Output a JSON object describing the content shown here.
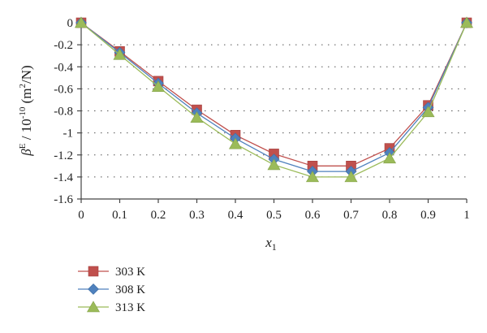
{
  "chart_data": {
    "type": "line",
    "x": [
      0,
      0.1,
      0.2,
      0.3,
      0.4,
      0.5,
      0.6,
      0.7,
      0.8,
      0.9,
      1
    ],
    "x_tick_labels": [
      "0",
      "0.1",
      "0.2",
      "0.3",
      "0.4",
      "0.5",
      "0.6",
      "0.7",
      "0.8",
      "0.9",
      "1"
    ],
    "y_tick_values": [
      0,
      -0.2,
      -0.4,
      -0.6,
      -0.8,
      -1,
      -1.2,
      -1.4,
      -1.6
    ],
    "y_tick_labels": [
      "0",
      "-0.2",
      "-0.4",
      "-0.6",
      "-0.8",
      "-1",
      "-1.2",
      "-1.4",
      "-1.6"
    ],
    "ylim": [
      -1.6,
      0
    ],
    "xlabel": "x",
    "xlabel_sub": "1",
    "ylabel": {
      "beta": "β",
      "beta_sup": "E",
      "unit_pre": " / 10",
      "exp": "-10",
      "unit_mid": " (m",
      "unit_sup": "2",
      "unit_post": "/N)"
    },
    "grid": "horizontal dotted",
    "legend_position": "bottom-left",
    "series": [
      {
        "name": "303 K",
        "marker": "square",
        "color": "#c0504d",
        "values": [
          0,
          -0.26,
          -0.53,
          -0.79,
          -1.02,
          -1.19,
          -1.3,
          -1.3,
          -1.14,
          -0.75,
          0
        ]
      },
      {
        "name": "308 K",
        "marker": "diamond",
        "color": "#4f81bd",
        "values": [
          0,
          -0.27,
          -0.55,
          -0.82,
          -1.05,
          -1.24,
          -1.35,
          -1.35,
          -1.18,
          -0.77,
          0
        ]
      },
      {
        "name": "313 K",
        "marker": "triangle",
        "color": "#9bbb59",
        "values": [
          0,
          -0.29,
          -0.58,
          -0.86,
          -1.1,
          -1.29,
          -1.4,
          -1.4,
          -1.23,
          -0.81,
          0
        ]
      }
    ]
  }
}
